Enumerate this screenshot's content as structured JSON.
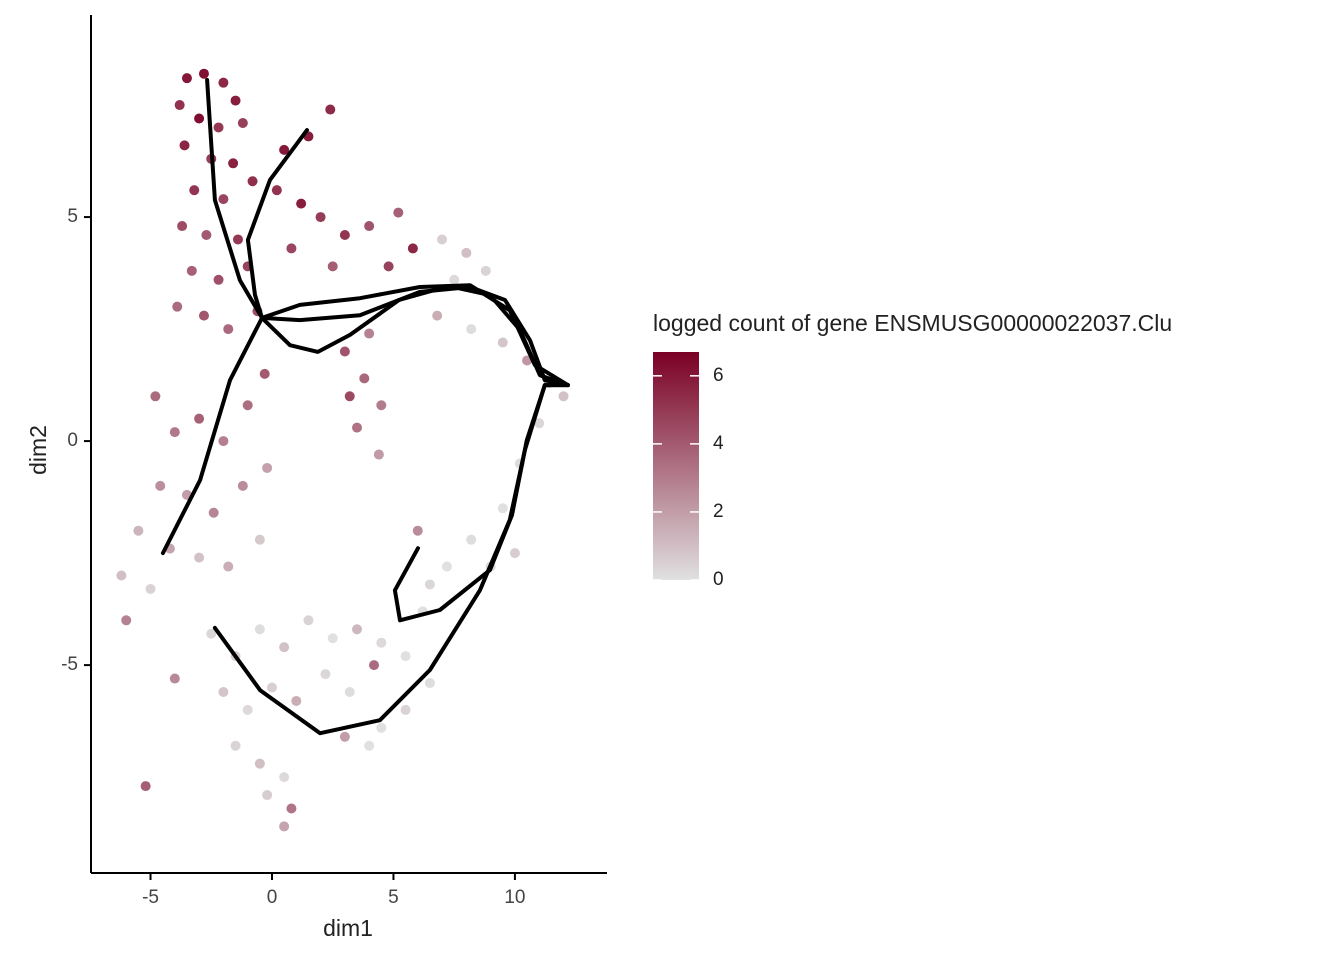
{
  "chart_data": {
    "type": "scatter",
    "x_label": "dim1",
    "y_label": "dim2",
    "legend_title": "logged count of gene ENSMUSG00000022037.Clu",
    "xlim": [
      -7.45,
      13.79
    ],
    "ylim": [
      -9.64,
      9.51
    ],
    "xticks": [
      -5,
      0,
      5,
      10
    ],
    "yticks": [
      -5,
      0,
      5
    ],
    "color_low": "#e0e0e0",
    "color_high": "#7a0025",
    "color_lim": [
      0,
      6.7
    ],
    "colorbar_ticks": [
      0,
      2,
      4,
      6
    ],
    "line_color": "#000000",
    "x": [
      -3.5,
      -2.8,
      -2.0,
      -1.5,
      -3.8,
      -3.0,
      -2.2,
      -1.2,
      -3.6,
      -2.5,
      -1.6,
      -3.2,
      -2.0,
      -0.8,
      -3.7,
      -2.7,
      -1.4,
      -3.3,
      -2.2,
      -1.0,
      -3.9,
      -2.8,
      -1.8,
      -0.6,
      0.5,
      1.5,
      2.4,
      0.2,
      1.2,
      2.0,
      3.0,
      4.0,
      5.2,
      5.8,
      4.8,
      0.8,
      2.5,
      3.0,
      3.8,
      4.5,
      3.5,
      4.4,
      3.2,
      4.0,
      7.0,
      8.0,
      7.5,
      8.8,
      6.8,
      8.2,
      9.5,
      10.5,
      11.4,
      12.0,
      11.0,
      10.2,
      9.5,
      10.0,
      9.0,
      8.2,
      7.2,
      6.5,
      6.0,
      6.2,
      -4.8,
      -4.0,
      -3.0,
      -2.0,
      -1.0,
      -0.3,
      -4.6,
      -3.5,
      -2.4,
      -1.2,
      -0.2,
      -5.5,
      -4.2,
      -3.0,
      -1.8,
      -0.5,
      -6.2,
      -5.0,
      -6.0,
      -5.2,
      -4.0,
      -2.5,
      -1.5,
      -0.5,
      0.5,
      1.5,
      2.5,
      3.5,
      4.5,
      5.5,
      -2.0,
      -1.0,
      0.0,
      1.0,
      2.2,
      3.2,
      4.5,
      5.5,
      6.5,
      -1.5,
      -0.5,
      0.5,
      0.8,
      0.5,
      -0.2,
      4.0,
      3.0,
      4.2
    ],
    "y": [
      8.1,
      8.2,
      8.0,
      7.6,
      7.5,
      7.2,
      7.0,
      7.1,
      6.6,
      6.3,
      6.2,
      5.6,
      5.4,
      5.8,
      4.8,
      4.6,
      4.5,
      3.8,
      3.6,
      3.9,
      3.0,
      2.8,
      2.5,
      2.9,
      6.5,
      6.8,
      7.4,
      5.6,
      5.3,
      5.0,
      4.6,
      4.8,
      5.1,
      4.3,
      3.9,
      4.3,
      3.9,
      2.0,
      1.4,
      0.8,
      0.3,
      -0.3,
      1.0,
      2.4,
      4.5,
      4.2,
      3.6,
      3.8,
      2.8,
      2.5,
      2.2,
      1.8,
      1.3,
      1.0,
      0.4,
      -0.5,
      -1.5,
      -2.5,
      -2.8,
      -2.2,
      -2.8,
      -3.2,
      -2.0,
      -3.8,
      1.0,
      0.2,
      0.5,
      0.0,
      0.8,
      1.5,
      -1.0,
      -1.2,
      -1.6,
      -1.0,
      -0.6,
      -2.0,
      -2.4,
      -2.6,
      -2.8,
      -2.2,
      -3.0,
      -3.3,
      -4.0,
      -7.7,
      -5.3,
      -4.3,
      -4.8,
      -4.2,
      -4.6,
      -4.0,
      -4.4,
      -4.2,
      -4.5,
      -4.8,
      -5.6,
      -6.0,
      -5.5,
      -5.8,
      -5.2,
      -5.6,
      -6.4,
      -6.0,
      -5.4,
      -6.8,
      -7.2,
      -7.5,
      -8.2,
      -8.6,
      -7.9,
      -6.8,
      -6.6,
      -5.0
    ],
    "values": [
      6.0,
      6.2,
      5.5,
      5.8,
      5.2,
      6.3,
      5.0,
      4.8,
      5.6,
      4.9,
      5.7,
      5.1,
      4.6,
      5.3,
      4.4,
      4.0,
      5.0,
      3.8,
      4.3,
      4.7,
      3.5,
      4.1,
      3.6,
      4.4,
      6.0,
      5.9,
      5.4,
      5.2,
      5.8,
      4.9,
      5.1,
      4.2,
      3.8,
      5.5,
      4.7,
      4.6,
      3.9,
      4.2,
      3.6,
      3.0,
      3.3,
      2.1,
      4.5,
      2.8,
      0.5,
      1.0,
      0.2,
      0.4,
      1.5,
      0.1,
      0.8,
      2.2,
      1.6,
      0.9,
      0.3,
      0.1,
      0.0,
      0.6,
      0.2,
      0.1,
      0.0,
      0.3,
      2.5,
      0.0,
      3.5,
      3.1,
      3.8,
      2.9,
      3.4,
      4.0,
      2.4,
      2.0,
      2.7,
      2.5,
      1.9,
      1.3,
      1.8,
      0.9,
      1.5,
      0.7,
      1.0,
      0.4,
      2.8,
      3.9,
      2.6,
      0.3,
      0.6,
      0.1,
      0.9,
      0.4,
      0.0,
      1.2,
      0.2,
      0.0,
      0.8,
      0.2,
      0.5,
      1.5,
      0.3,
      0.1,
      0.0,
      0.4,
      0.1,
      0.4,
      1.0,
      0.2,
      3.2,
      1.8,
      0.6,
      0.0,
      2.0,
      3.5
    ],
    "lines": [
      {
        "x": [
          -2.67,
          -2.35,
          -1.32,
          -0.41,
          0.74,
          1.89,
          3.21,
          5.23,
          7.28,
          8.97,
          10.21,
          11.03,
          12.18
        ],
        "y": [
          8.06,
          5.38,
          3.59,
          2.75,
          2.14,
          1.99,
          2.37,
          3.15,
          3.46,
          3.26,
          2.48,
          1.47,
          1.25
        ]
      },
      {
        "x": [
          1.44,
          -0.08,
          -0.99,
          -0.7,
          -0.41,
          1.15,
          3.62,
          6.09,
          8.15,
          9.59,
          10.62,
          11.23,
          12.18
        ],
        "y": [
          6.94,
          5.83,
          4.49,
          3.26,
          2.75,
          2.7,
          2.81,
          3.33,
          3.44,
          3.15,
          2.25,
          1.36,
          1.25
        ]
      },
      {
        "x": [
          -4.49,
          -2.96,
          -1.73,
          -0.41,
          1.15,
          3.62,
          6.09,
          8.15,
          9.79,
          10.82,
          12.18
        ],
        "y": [
          -2.5,
          -0.87,
          1.36,
          2.75,
          3.04,
          3.19,
          3.44,
          3.48,
          2.92,
          1.7,
          1.25
        ]
      },
      {
        "x": [
          -2.35,
          -0.49,
          1.98,
          4.44,
          6.5,
          8.56,
          9.79,
          10.41,
          11.23,
          12.18
        ],
        "y": [
          -4.17,
          -5.56,
          -6.52,
          -6.23,
          -5.11,
          -3.33,
          -1.76,
          -0.2,
          1.25,
          1.25
        ]
      },
      {
        "x": [
          6.01,
          5.06,
          5.27,
          6.91,
          8.97,
          9.88,
          10.49,
          11.23,
          12.18
        ],
        "y": [
          -2.39,
          -3.33,
          -4.0,
          -3.77,
          -2.88,
          -1.65,
          0.02,
          1.25,
          1.25
        ]
      }
    ]
  }
}
